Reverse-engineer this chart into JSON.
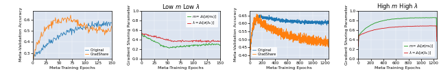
{
  "title_low": "Low $m$ Low $\\lambda$",
  "title_high": "High $m$ High $\\lambda$",
  "ylabel_acc": "Meta-Validation Accuracy",
  "ylabel_grad": "Gradient Sharing Parameter",
  "xlabel": "Meta-Training Epochs",
  "legend_original": "Original",
  "legend_gradshare": "GradShare",
  "legend_m": "$m = \\mathcal{E}_k[\\sigma(m_k)]$",
  "legend_lam": "$\\lambda = \\mathcal{E}_k[\\sigma(\\lambda_k)]$",
  "color_original": "#1f77b4",
  "color_gradshare": "#ff7f0e",
  "color_m": "#2ca02c",
  "color_lam": "#d62728",
  "bg_color": "#dce4f0",
  "low_epochs": 150,
  "high_epochs": 1250,
  "seed": 42
}
